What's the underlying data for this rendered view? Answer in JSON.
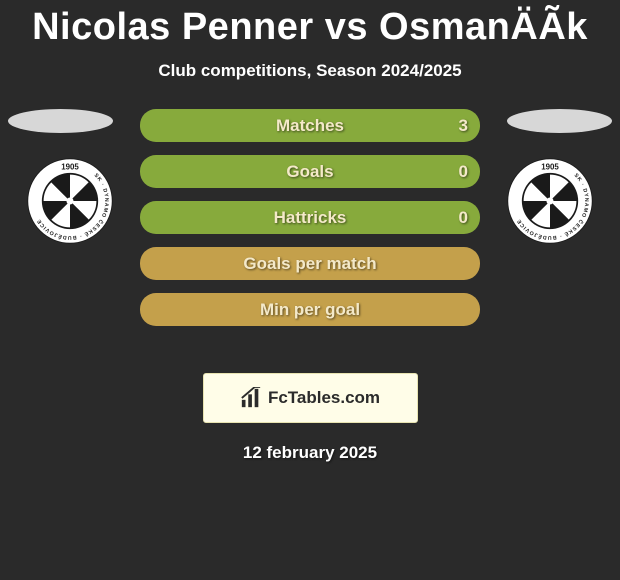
{
  "title": "Nicolas Penner vs OsmanÄÃ­k",
  "subtitle": "Club competitions, Season 2024/2025",
  "footer_date": "12 february 2025",
  "watermark_text": "FcTables.com",
  "rows": [
    {
      "label": "Matches",
      "left": "",
      "right": "3",
      "bg": "#87aa3c",
      "fg": "#f4e9c9"
    },
    {
      "label": "Goals",
      "left": "",
      "right": "0",
      "bg": "#87aa3c",
      "fg": "#f4e9c9"
    },
    {
      "label": "Hattricks",
      "left": "",
      "right": "0",
      "bg": "#87aa3c",
      "fg": "#f4e9c9"
    },
    {
      "label": "Goals per match",
      "left": "",
      "right": "",
      "bg": "#c4a04b",
      "fg": "#f4e9c9"
    },
    {
      "label": "Min per goal",
      "left": "",
      "right": "",
      "bg": "#c4a04b",
      "fg": "#f4e9c9"
    }
  ],
  "club_badge": {
    "year": "1905",
    "arc_text": "SK · DYNAMO ČESKÉ · BUDĚJOVICE",
    "ring_bg": "#ffffff",
    "ring_text": "#1a1a1a",
    "inner_bg": "#1a1a1a",
    "wedge_colors": [
      "#ffffff",
      "#1a1a1a",
      "#ffffff",
      "#1a1a1a",
      "#ffffff",
      "#1a1a1a",
      "#ffffff",
      "#1a1a1a"
    ]
  },
  "colors": {
    "page_bg": "#2a2a2a",
    "ellipse": "#d7d7d7",
    "watermark_bg": "#fffde8",
    "watermark_border": "#e7e3b0",
    "watermark_fg": "#2b2b2b"
  }
}
